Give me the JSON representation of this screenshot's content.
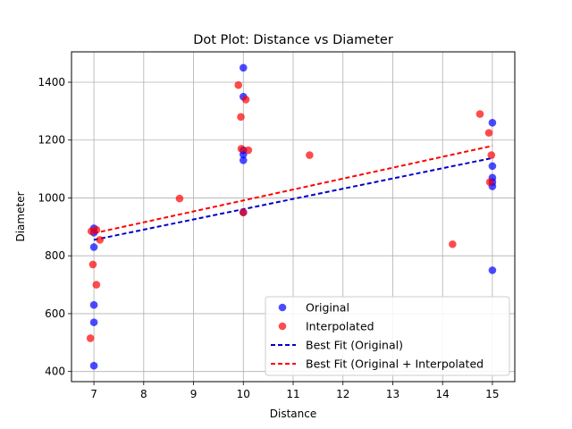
{
  "chart_data": {
    "type": "scatter",
    "title": "Dot Plot: Distance vs Diameter",
    "xlabel": "Distance",
    "ylabel": "Diameter",
    "xlim": [
      6.55,
      15.45
    ],
    "ylim": [
      365,
      1505
    ],
    "xticks": [
      7,
      8,
      9,
      10,
      11,
      12,
      13,
      14,
      15
    ],
    "yticks": [
      400,
      600,
      800,
      1000,
      1200,
      1400
    ],
    "grid": true,
    "legend_position": "lower-right",
    "series": [
      {
        "name": "Original",
        "kind": "points",
        "color": "#0000ff",
        "points": [
          {
            "x": 7.0,
            "y": 420
          },
          {
            "x": 7.0,
            "y": 570
          },
          {
            "x": 7.0,
            "y": 630
          },
          {
            "x": 7.0,
            "y": 830
          },
          {
            "x": 7.0,
            "y": 880
          },
          {
            "x": 7.0,
            "y": 895
          },
          {
            "x": 10.0,
            "y": 950
          },
          {
            "x": 10.0,
            "y": 1130
          },
          {
            "x": 10.0,
            "y": 1150
          },
          {
            "x": 10.0,
            "y": 1165
          },
          {
            "x": 10.0,
            "y": 1350
          },
          {
            "x": 10.0,
            "y": 1450
          },
          {
            "x": 15.0,
            "y": 750
          },
          {
            "x": 15.0,
            "y": 1040
          },
          {
            "x": 15.0,
            "y": 1055
          },
          {
            "x": 15.0,
            "y": 1070
          },
          {
            "x": 15.0,
            "y": 1110
          },
          {
            "x": 15.0,
            "y": 1260
          }
        ]
      },
      {
        "name": "Interpolated",
        "kind": "points",
        "color": "#ff0000",
        "points": [
          {
            "x": 6.93,
            "y": 515
          },
          {
            "x": 6.95,
            "y": 885
          },
          {
            "x": 6.98,
            "y": 770
          },
          {
            "x": 7.05,
            "y": 700
          },
          {
            "x": 7.05,
            "y": 890
          },
          {
            "x": 7.12,
            "y": 855
          },
          {
            "x": 8.72,
            "y": 998
          },
          {
            "x": 9.9,
            "y": 1390
          },
          {
            "x": 9.95,
            "y": 1280
          },
          {
            "x": 9.96,
            "y": 1170
          },
          {
            "x": 10.0,
            "y": 950
          },
          {
            "x": 10.05,
            "y": 1340
          },
          {
            "x": 10.1,
            "y": 1165
          },
          {
            "x": 11.33,
            "y": 1148
          },
          {
            "x": 14.2,
            "y": 840
          },
          {
            "x": 14.75,
            "y": 1290
          },
          {
            "x": 14.93,
            "y": 1225
          },
          {
            "x": 14.95,
            "y": 1055
          },
          {
            "x": 14.98,
            "y": 1148
          }
        ]
      },
      {
        "name": "Best Fit (Original)",
        "kind": "line",
        "color": "#0000cc",
        "x": [
          7,
          15
        ],
        "y": [
          855,
          1138
        ]
      },
      {
        "name": "Best Fit (Original + Interpolated",
        "kind": "line",
        "color": "#ff0000",
        "x": [
          7,
          15
        ],
        "y": [
          878,
          1180
        ]
      }
    ]
  }
}
